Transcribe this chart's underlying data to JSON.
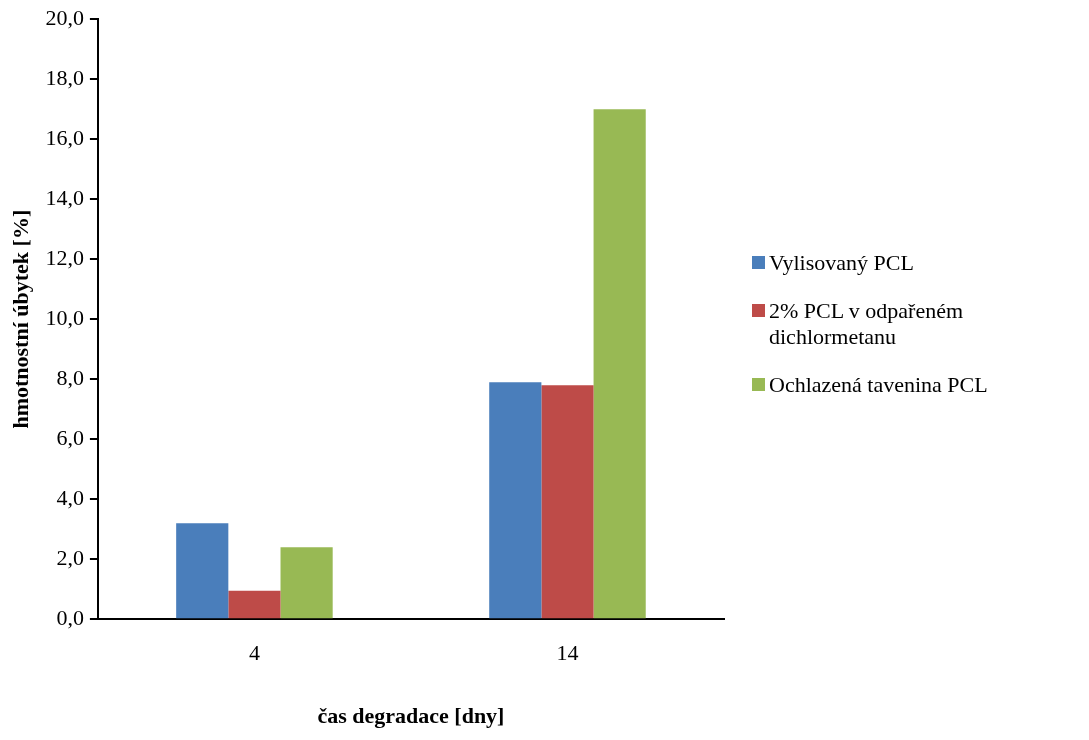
{
  "chart_data": {
    "type": "bar",
    "xlabel": "čas degradace [dny]",
    "ylabel": "hmotnostní úbytek [%]",
    "categories": [
      "4",
      "14"
    ],
    "series": [
      {
        "name": "Vylisovaný PCL",
        "color": "#4a7ebb",
        "values": [
          3.2,
          7.9
        ]
      },
      {
        "name": "2% PCL v odpařeném dichlormetanu",
        "color": "#be4b48",
        "values": [
          0.95,
          7.8
        ]
      },
      {
        "name": "Ochlazená tavenina PCL",
        "color": "#98b954",
        "values": [
          2.4,
          17.0
        ]
      }
    ],
    "ylim": [
      0,
      20
    ],
    "yticks": [
      {
        "value": 0,
        "label": "0,0"
      },
      {
        "value": 2,
        "label": "2,0"
      },
      {
        "value": 4,
        "label": "4,0"
      },
      {
        "value": 6,
        "label": "6,0"
      },
      {
        "value": 8,
        "label": "8,0"
      },
      {
        "value": 10,
        "label": "10,0"
      },
      {
        "value": 12,
        "label": "12,0"
      },
      {
        "value": 14,
        "label": "14,0"
      },
      {
        "value": 16,
        "label": "16,0"
      },
      {
        "value": 18,
        "label": "18,0"
      },
      {
        "value": 20,
        "label": "20,0"
      }
    ],
    "grid": false,
    "legend": "right"
  }
}
